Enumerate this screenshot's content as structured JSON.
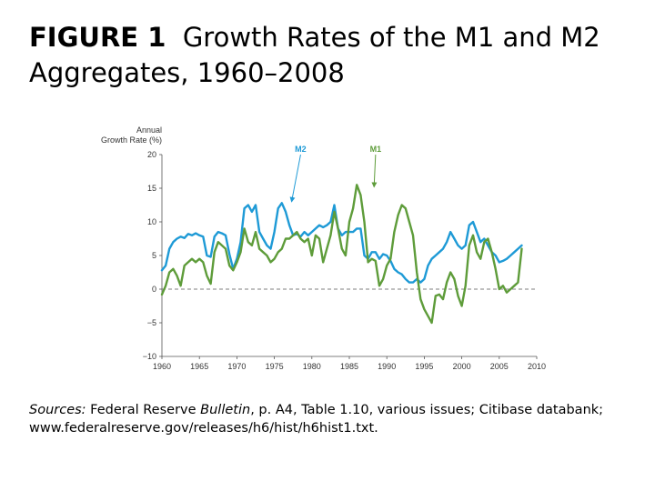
{
  "figure": {
    "label": "FIGURE 1",
    "title": "Growth Rates of the M1 and M2 Aggregates, 1960–2008"
  },
  "chart_data": {
    "type": "line",
    "title": "Growth Rates of the M1 and M2 Aggregates, 1960–2008",
    "ylabel_line1": "Annual",
    "ylabel_line2": "Growth Rate (%)",
    "xlabel": "",
    "xlim": [
      1960,
      2010
    ],
    "ylim": [
      -10,
      20
    ],
    "x_ticks": [
      "1960",
      "1965",
      "1970",
      "1975",
      "1980",
      "1985",
      "1990",
      "1995",
      "2000",
      "2005",
      "2010"
    ],
    "y_ticks": [
      "20",
      "15",
      "10",
      "5",
      "0",
      "−5",
      "−10"
    ],
    "zero_line": true,
    "grid": false,
    "series": [
      {
        "name": "M2",
        "color": "#1e9ad6",
        "x": [
          1960,
          1960.5,
          1961,
          1961.5,
          1962,
          1962.5,
          1963,
          1963.5,
          1964,
          1964.5,
          1965,
          1965.5,
          1966,
          1966.5,
          1967,
          1967.5,
          1968,
          1968.5,
          1969,
          1969.5,
          1970,
          1970.5,
          1971,
          1971.5,
          1972,
          1972.5,
          1973,
          1973.5,
          1974,
          1974.5,
          1975,
          1975.5,
          1976,
          1976.5,
          1977,
          1977.5,
          1978,
          1978.5,
          1979,
          1979.5,
          1980,
          1980.5,
          1981,
          1981.5,
          1982,
          1982.5,
          1983,
          1983.5,
          1984,
          1984.5,
          1985,
          1985.5,
          1986,
          1986.5,
          1987,
          1987.5,
          1988,
          1988.5,
          1989,
          1989.5,
          1990,
          1990.5,
          1991,
          1991.5,
          1992,
          1992.5,
          1993,
          1993.5,
          1994,
          1994.5,
          1995,
          1995.5,
          1996,
          1996.5,
          1997,
          1997.5,
          1998,
          1998.5,
          1999,
          1999.5,
          2000,
          2000.5,
          2001,
          2001.5,
          2002,
          2002.5,
          2003,
          2003.5,
          2004,
          2004.5,
          2005,
          2005.5,
          2006,
          2006.5,
          2007,
          2007.5,
          2008
        ],
        "values": [
          2.8,
          3.5,
          6.0,
          7.0,
          7.5,
          7.8,
          7.6,
          8.2,
          8.0,
          8.3,
          8.0,
          7.8,
          5.0,
          4.8,
          7.8,
          8.5,
          8.3,
          8.0,
          5.2,
          3.0,
          4.5,
          7.0,
          12.0,
          12.5,
          11.5,
          12.5,
          8.5,
          7.5,
          6.5,
          6.0,
          8.5,
          12.0,
          12.8,
          11.5,
          9.5,
          8.0,
          8.2,
          7.8,
          8.5,
          8.0,
          8.5,
          9.0,
          9.5,
          9.2,
          9.5,
          10.0,
          12.5,
          9.0,
          8.0,
          8.5,
          8.5,
          8.5,
          9.0,
          9.0,
          5.0,
          4.5,
          5.5,
          5.5,
          4.5,
          5.2,
          5.0,
          4.2,
          3.0,
          2.5,
          2.2,
          1.5,
          1.0,
          1.0,
          1.5,
          1.0,
          1.5,
          3.5,
          4.5,
          5.0,
          5.5,
          6.0,
          7.0,
          8.5,
          7.5,
          6.5,
          6.0,
          6.5,
          9.5,
          10.0,
          8.5,
          7.0,
          7.5,
          6.5,
          5.5,
          5.0,
          4.0,
          4.2,
          4.5,
          5.0,
          5.5,
          6.0,
          6.5
        ]
      },
      {
        "name": "M1",
        "color": "#5e9c3a",
        "x": [
          1960,
          1960.5,
          1961,
          1961.5,
          1962,
          1962.5,
          1963,
          1963.5,
          1964,
          1964.5,
          1965,
          1965.5,
          1966,
          1966.5,
          1967,
          1967.5,
          1968,
          1968.5,
          1969,
          1969.5,
          1970,
          1970.5,
          1971,
          1971.5,
          1972,
          1972.5,
          1973,
          1973.5,
          1974,
          1974.5,
          1975,
          1975.5,
          1976,
          1976.5,
          1977,
          1977.5,
          1978,
          1978.5,
          1979,
          1979.5,
          1980,
          1980.5,
          1981,
          1981.5,
          1982,
          1982.5,
          1983,
          1983.5,
          1984,
          1984.5,
          1985,
          1985.5,
          1986,
          1986.5,
          1987,
          1987.5,
          1988,
          1988.5,
          1989,
          1989.5,
          1990,
          1990.5,
          1991,
          1991.5,
          1992,
          1992.5,
          1993,
          1993.5,
          1994,
          1994.5,
          1995,
          1995.5,
          1996,
          1996.5,
          1997,
          1997.5,
          1998,
          1998.5,
          1999,
          1999.5,
          2000,
          2000.5,
          2001,
          2001.5,
          2002,
          2002.5,
          2003,
          2003.5,
          2004,
          2004.5,
          2005,
          2005.5,
          2006,
          2006.5,
          2007,
          2007.5,
          2008
        ],
        "values": [
          -0.8,
          0.5,
          2.5,
          3.0,
          2.0,
          0.5,
          3.5,
          4.0,
          4.5,
          4.0,
          4.5,
          4.0,
          2.0,
          0.8,
          5.5,
          7.0,
          6.5,
          6.0,
          3.5,
          2.8,
          4.0,
          5.5,
          9.0,
          7.0,
          6.5,
          8.5,
          6.0,
          5.5,
          5.0,
          4.0,
          4.5,
          5.5,
          6.0,
          7.5,
          7.5,
          8.0,
          8.5,
          7.5,
          7.0,
          7.5,
          5.0,
          8.0,
          7.5,
          4.0,
          6.0,
          8.0,
          11.5,
          9.0,
          6.0,
          5.0,
          10.0,
          12.0,
          15.5,
          14.0,
          10.0,
          4.0,
          4.5,
          4.2,
          0.5,
          1.5,
          3.5,
          4.5,
          8.5,
          11.0,
          12.5,
          12.0,
          10.0,
          8.0,
          2.5,
          -1.5,
          -3.0,
          -4.0,
          -5.0,
          -1.0,
          -0.8,
          -1.5,
          1.0,
          2.5,
          1.5,
          -1.0,
          -2.5,
          0.5,
          6.5,
          8.0,
          5.5,
          4.5,
          7.0,
          7.5,
          5.5,
          3.0,
          0.0,
          0.5,
          -0.5,
          0.0,
          0.5,
          1.0,
          6.0
        ]
      }
    ],
    "annotations": [
      {
        "label": "M2",
        "series": "M2",
        "x": 1978.5,
        "y": 20.4,
        "target_x": 1977.3,
        "target_y": 13.0
      },
      {
        "label": "M1",
        "series": "M1",
        "x": 1988.5,
        "y": 20.4,
        "target_x": 1988.3,
        "target_y": 15.2
      }
    ]
  },
  "sources": {
    "label": "Sources:",
    "text_part1": "Federal Reserve",
    "publication": "Bulletin",
    "text_part2": ", p. A4, Table 1.10, various issues; Citibase databank; www.federalreserve.gov/releases/h6/hist/h6hist1.txt."
  }
}
